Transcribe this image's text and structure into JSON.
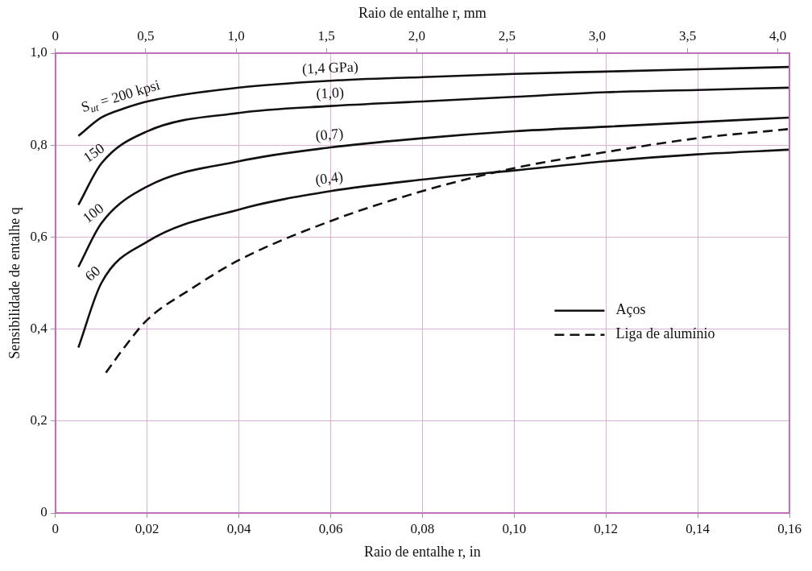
{
  "chart_data": {
    "type": "line",
    "xlabel": "Raio de entalhe r, in",
    "ylabel": "Sensibilidade de entalhe q",
    "x2label": "Raio de entalhe r, mm",
    "series": [
      {
        "name": "Aços",
        "color": "#111111",
        "line_style": "solid",
        "x": [
          0.005,
          0.01,
          0.015,
          0.02,
          0.04,
          0.06,
          0.08,
          0.1,
          0.12,
          0.14,
          0.16
        ],
        "values": [
          0.82,
          0.86,
          0.88,
          0.895,
          0.925,
          0.94,
          0.948,
          0.955,
          0.96,
          0.965,
          0.97
        ]
      },
      {
        "color": "#111111",
        "line_style": "solid",
        "x": [
          0.005,
          0.01,
          0.02,
          0.04,
          0.06,
          0.08,
          0.1,
          0.12,
          0.14,
          0.16
        ],
        "values": [
          0.67,
          0.76,
          0.83,
          0.87,
          0.885,
          0.895,
          0.905,
          0.915,
          0.92,
          0.925
        ]
      },
      {
        "color": "#111111",
        "line_style": "solid",
        "x": [
          0.005,
          0.01,
          0.02,
          0.04,
          0.06,
          0.08,
          0.1,
          0.12,
          0.14,
          0.16
        ],
        "values": [
          0.535,
          0.63,
          0.71,
          0.765,
          0.795,
          0.815,
          0.83,
          0.84,
          0.85,
          0.86
        ]
      },
      {
        "color": "#111111",
        "line_style": "solid",
        "x": [
          0.005,
          0.01,
          0.02,
          0.04,
          0.06,
          0.08,
          0.1,
          0.12,
          0.14,
          0.16
        ],
        "values": [
          0.36,
          0.5,
          0.59,
          0.66,
          0.7,
          0.725,
          0.745,
          0.765,
          0.78,
          0.79
        ]
      },
      {
        "name": "Liga de alumínio",
        "color": "#111111",
        "line_style": "dashed",
        "x": [
          0.011,
          0.015,
          0.02,
          0.03,
          0.04,
          0.06,
          0.08,
          0.1,
          0.12,
          0.14,
          0.16
        ],
        "values": [
          0.305,
          0.36,
          0.42,
          0.49,
          0.55,
          0.635,
          0.7,
          0.75,
          0.785,
          0.815,
          0.835
        ]
      }
    ],
    "xlim": [
      0,
      0.16
    ],
    "xticks": [
      0,
      {
        "value": 0.02,
        "label": "0,02"
      },
      {
        "value": 0.04,
        "label": "0,04"
      },
      {
        "value": 0.06,
        "label": "0,06"
      },
      {
        "value": 0.08,
        "label": "0,08"
      },
      {
        "value": 0.1,
        "label": "0,10"
      },
      {
        "value": 0.12,
        "label": "0,12"
      },
      {
        "value": 0.14,
        "label": "0,14"
      },
      {
        "value": 0.16,
        "label": "0,16"
      }
    ],
    "ylim": [
      0,
      1
    ],
    "yticks": [
      0,
      {
        "value": 0.2,
        "label": "0,2"
      },
      {
        "value": 0.4,
        "label": "0,4"
      },
      {
        "value": 0.6,
        "label": "0,6"
      },
      {
        "value": 0.8,
        "label": "0,8"
      },
      {
        "value": 1,
        "label": "1,0"
      }
    ],
    "x2lim": [
      0,
      4.064
    ],
    "x2ticks": [
      0,
      {
        "value": 0.5,
        "label": "0,5"
      },
      {
        "value": 1,
        "label": "1,0"
      },
      {
        "value": 1.5,
        "label": "1,5"
      },
      {
        "value": 2,
        "label": "2,0"
      },
      {
        "value": 2.5,
        "label": "2,5"
      },
      {
        "value": 3,
        "label": "3,0"
      },
      {
        "value": 3.5,
        "label": "3,5"
      },
      {
        "value": 4,
        "label": "4,0"
      }
    ],
    "annotations": [
      {
        "text": "S$_{ut}$ = 200 kpsi",
        "x": 0.015,
        "y": 0.88
      },
      {
        "text": "150",
        "x": 0.01,
        "y": 0.76
      },
      {
        "text": "100",
        "x": 0.01,
        "y": 0.63
      },
      {
        "text": "60",
        "x": 0.01,
        "y": 0.5
      },
      {
        "text": "(1,4 GPa)",
        "x": 0.06,
        "y": 0.94
      },
      {
        "text": "(1,0)",
        "x": 0.06,
        "y": 0.885
      },
      {
        "text": "(0,7)",
        "x": 0.06,
        "y": 0.795
      },
      {
        "text": "(0,4)",
        "x": 0.06,
        "y": 0.7
      }
    ],
    "grid": true,
    "legend": "bottom right",
    "marker": "none"
  }
}
